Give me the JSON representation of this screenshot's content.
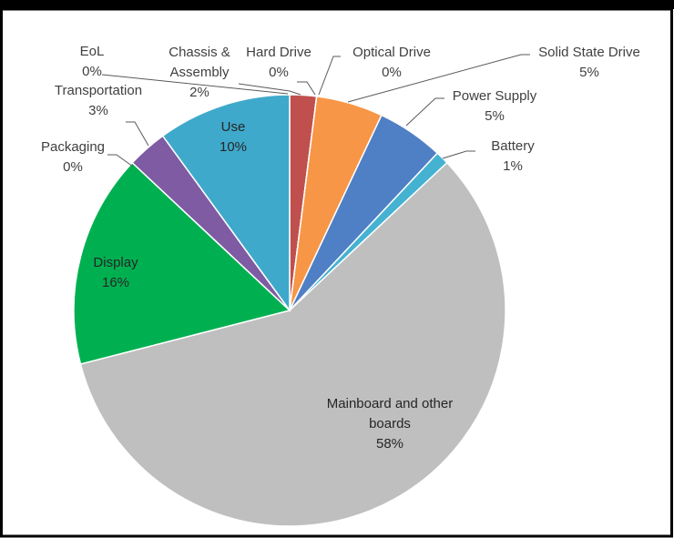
{
  "chart_data": {
    "type": "pie",
    "categories": [
      "EoL",
      "Chassis & Assembly",
      "Hard Drive",
      "Optical Drive",
      "Solid State Drive",
      "Power Supply",
      "Battery",
      "Mainboard and other boards",
      "Display",
      "Packaging",
      "Transportation",
      "Use"
    ],
    "values": [
      0,
      2,
      0,
      0,
      5,
      5,
      1,
      58,
      16,
      0,
      3,
      10
    ],
    "value_labels": [
      "0%",
      "2%",
      "0%",
      "0%",
      "5%",
      "5%",
      "1%",
      "58%",
      "16%",
      "0%",
      "3%",
      "10%"
    ],
    "colors": [
      "#f2a33a",
      "#c0504d",
      "#d9d9d9",
      "#ffc000",
      "#f79646",
      "#4f7fc4",
      "#45b2d1",
      "#bfbfbf",
      "#00b050",
      "#9bbb59",
      "#7e5ba3",
      "#3fa9cb"
    ]
  }
}
